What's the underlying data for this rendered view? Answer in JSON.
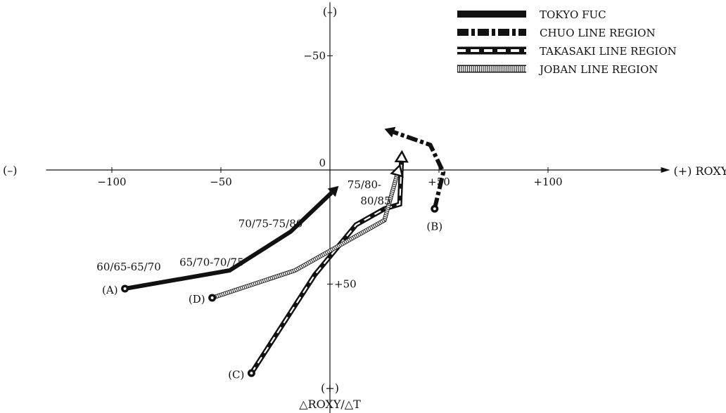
{
  "chart_data": {
    "type": "line",
    "title": "",
    "x_axis": {
      "label": "(+) ROXY",
      "neg_label": "(–)",
      "range": [
        -135,
        155
      ],
      "ticks": [
        {
          "value": -100,
          "label": "−100"
        },
        {
          "value": -50,
          "label": "−50"
        },
        {
          "value": 50,
          "label": "+50"
        },
        {
          "value": 100,
          "label": "+100"
        }
      ]
    },
    "y_axis": {
      "label_line1": "(+)",
      "label_line2": "△ROXY/△T",
      "neg_label": "(–)",
      "range": [
        -75,
        115
      ],
      "inverted": true,
      "ticks": [
        {
          "value": -50,
          "label": "−50"
        },
        {
          "value": 50,
          "label": "+50"
        }
      ]
    },
    "origin_label": "0",
    "grid": false,
    "legend_position": "top-right",
    "series": [
      {
        "name": "TOKYO FUC",
        "style": "solid",
        "start_label": "(A)",
        "points": [
          [
            -94,
            52
          ],
          [
            -46,
            44
          ],
          [
            -18,
            27
          ],
          [
            4,
            7
          ]
        ]
      },
      {
        "name": "CHUO LINE REGION",
        "style": "dash-dot",
        "start_label": "(B)",
        "points": [
          [
            48,
            17
          ],
          [
            52,
            1
          ],
          [
            46,
            -11
          ],
          [
            25,
            -18
          ]
        ]
      },
      {
        "name": "TAKASAKI LINE REGION",
        "style": "white-dash",
        "start_label": "(C)",
        "points": [
          [
            -36,
            89
          ],
          [
            -7,
            46
          ],
          [
            12,
            24
          ],
          [
            25,
            17
          ],
          [
            32,
            15
          ],
          [
            33,
            -8
          ]
        ]
      },
      {
        "name": "JOBAN LINE REGION",
        "style": "striped",
        "start_label": "(D)",
        "points": [
          [
            -54,
            56
          ],
          [
            -16,
            44
          ],
          [
            25,
            22
          ],
          [
            32,
            -2
          ]
        ]
      }
    ],
    "annotations": [
      {
        "text": "60/65-65/70",
        "x": -107,
        "y": 44
      },
      {
        "text": "65/70-70/75",
        "x": -69,
        "y": 42
      },
      {
        "text": "70/75-75/80",
        "x": -42,
        "y": 25
      },
      {
        "text": "75/80-",
        "x": 8,
        "y": 8
      },
      {
        "text": "80/85",
        "x": 14,
        "y": 15
      }
    ]
  }
}
